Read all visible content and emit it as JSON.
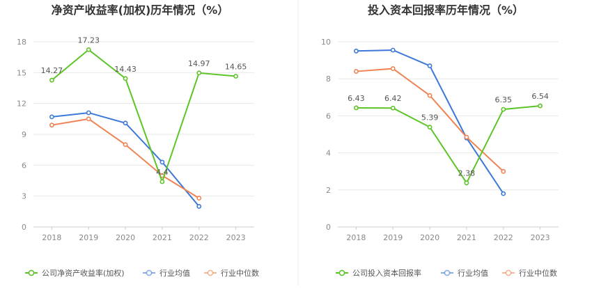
{
  "chart_data": [
    {
      "type": "line",
      "title": "净资产收益率(加权)历年情况（%）",
      "categories": [
        "2018",
        "2019",
        "2020",
        "2021",
        "2022",
        "2023"
      ],
      "yticks": [
        "0",
        "3",
        "6",
        "9",
        "12",
        "15",
        "18"
      ],
      "ylim": [
        0,
        18
      ],
      "grid": true,
      "legend_position": "bottom",
      "series": [
        {
          "name": "公司净资产收益率(加权)",
          "color": "#5cc426",
          "values": [
            14.27,
            17.23,
            14.43,
            4.4,
            14.97,
            14.65
          ],
          "labels": [
            "14.27",
            "17.23",
            "14.43",
            "4.4",
            "14.97",
            "14.65"
          ]
        },
        {
          "name": "行业均值",
          "color": "#3c78d8",
          "values": [
            10.7,
            11.1,
            10.1,
            6.3,
            2.0,
            null
          ]
        },
        {
          "name": "行业中位数",
          "color": "#ef8354",
          "values": [
            9.9,
            10.5,
            8.0,
            5.0,
            2.8,
            null
          ]
        }
      ]
    },
    {
      "type": "line",
      "title": "投入资本回报率历年情况（%）",
      "categories": [
        "2018",
        "2019",
        "2020",
        "2021",
        "2022",
        "2023"
      ],
      "yticks": [
        "0",
        "2",
        "4",
        "6",
        "8",
        "10"
      ],
      "ylim": [
        0,
        10
      ],
      "grid": true,
      "legend_position": "bottom",
      "series": [
        {
          "name": "公司投入资本回报率",
          "color": "#5cc426",
          "values": [
            6.43,
            6.42,
            5.39,
            2.38,
            6.35,
            6.54
          ],
          "labels": [
            "6.43",
            "6.42",
            "5.39",
            "2.38",
            "6.35",
            "6.54"
          ]
        },
        {
          "name": "行业均值",
          "color": "#3c78d8",
          "values": [
            9.5,
            9.55,
            8.7,
            4.8,
            1.8,
            null
          ]
        },
        {
          "name": "行业中位数",
          "color": "#ef8354",
          "values": [
            8.4,
            8.55,
            7.1,
            4.85,
            3.0,
            null
          ]
        }
      ]
    }
  ]
}
